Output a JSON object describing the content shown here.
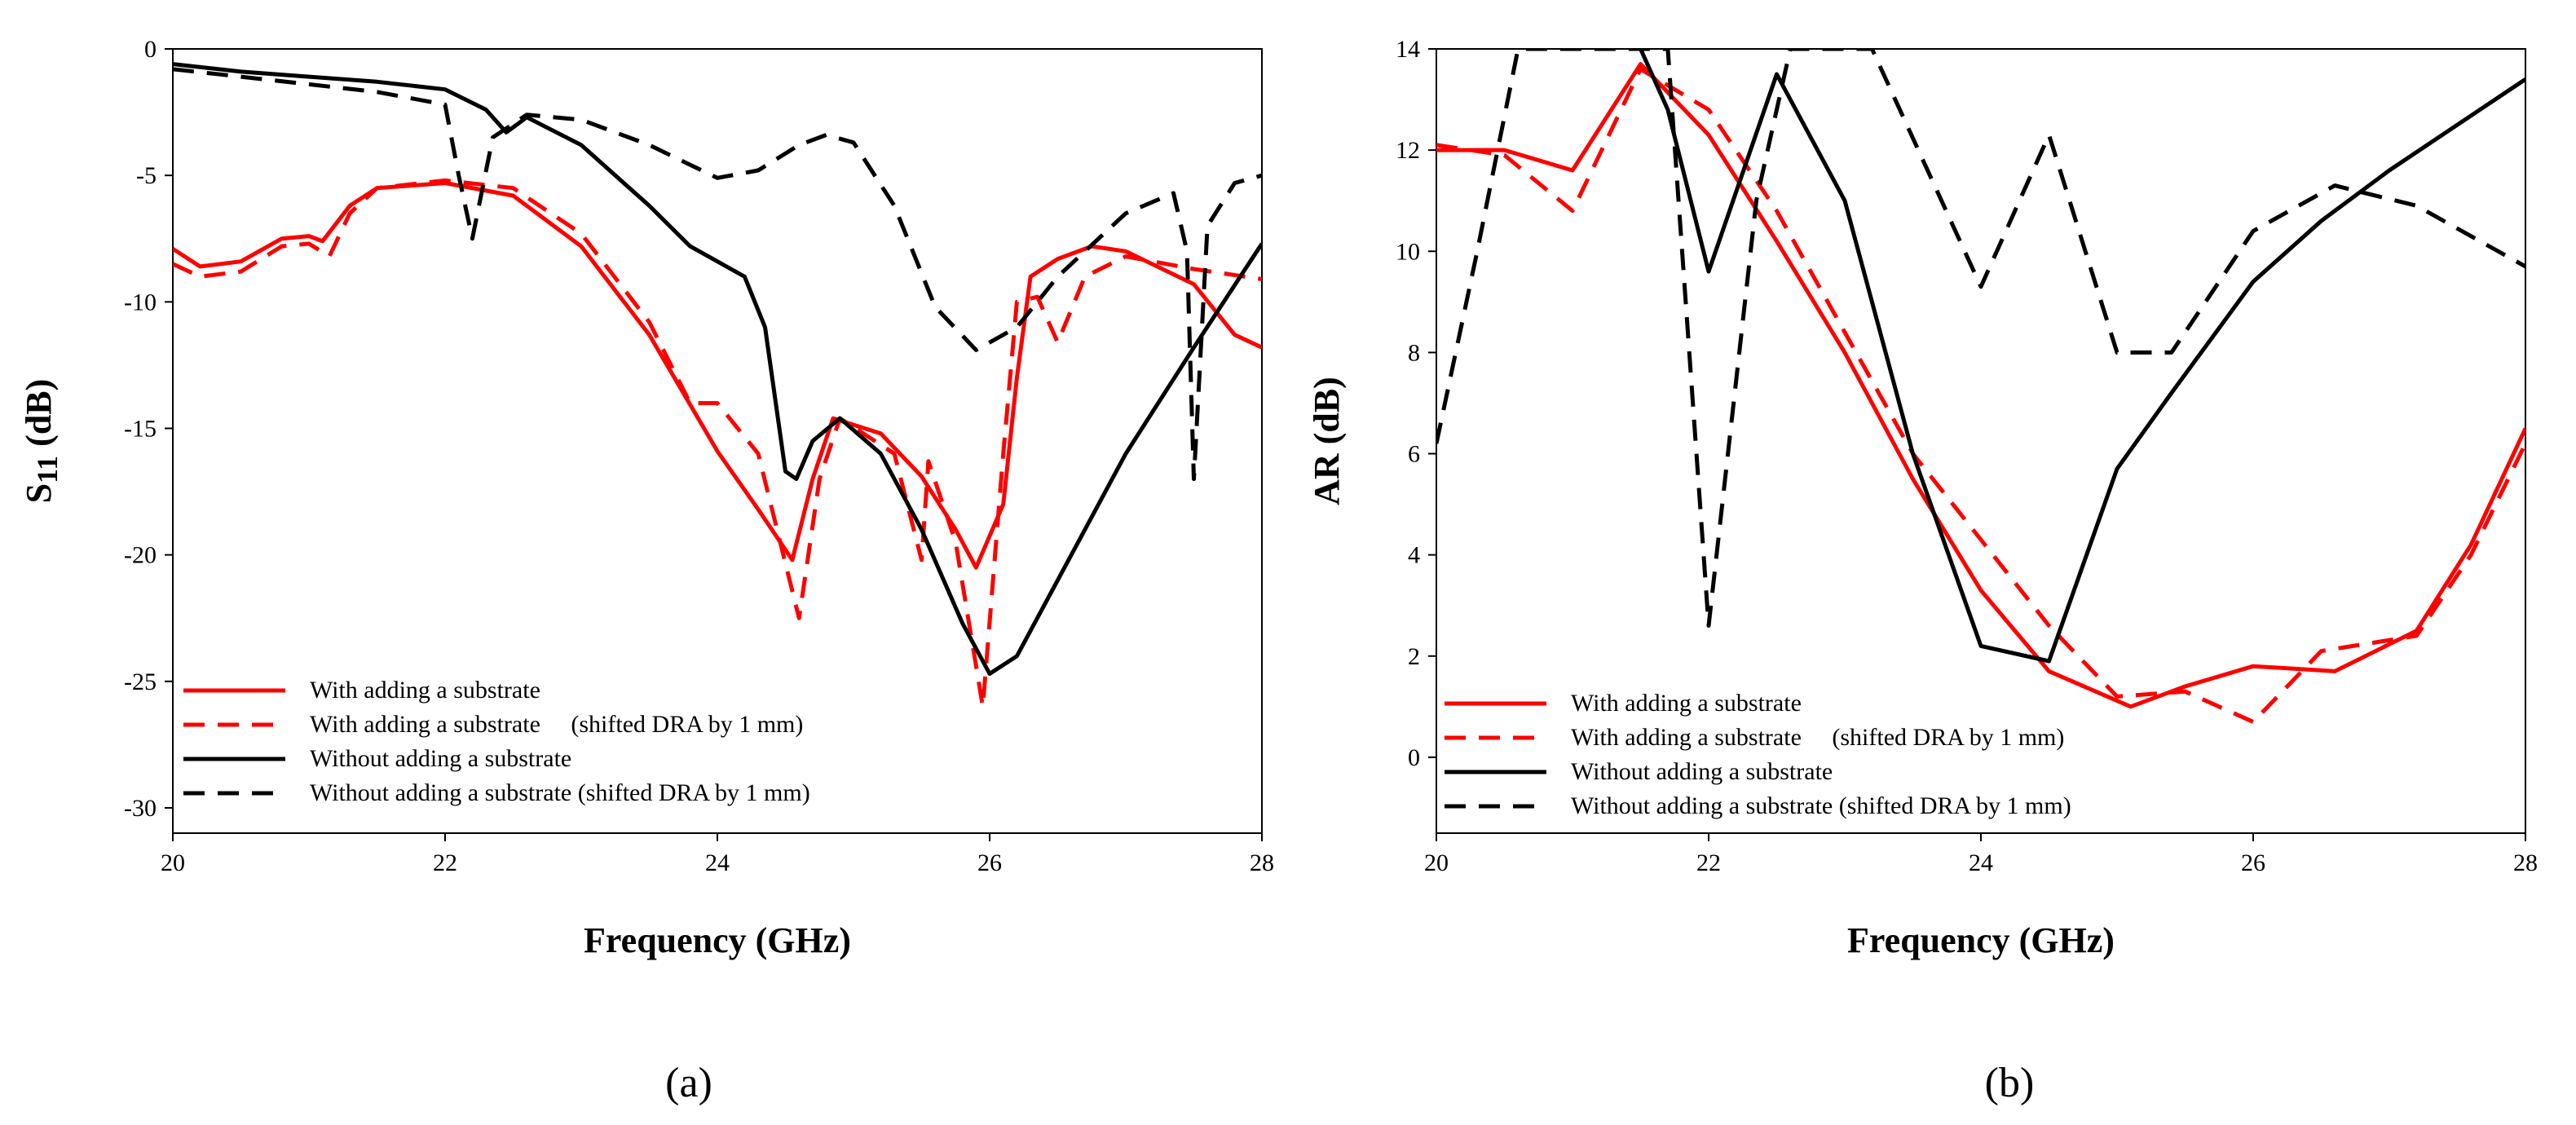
{
  "chart_data": [
    {
      "type": "line",
      "panel": "a",
      "caption": "(a)",
      "xlabel": "Frequency (GHz)",
      "ylabel_main": "S",
      "ylabel_sub": "11",
      "ylabel_unit": " (dB)",
      "xlim": [
        20,
        28
      ],
      "ylim": [
        -31,
        0
      ],
      "xticks": [
        "20",
        "22",
        "24",
        "26",
        "28"
      ],
      "yticks": [
        "0",
        "-5",
        "-10",
        "-15",
        "-20",
        "-25",
        "-30"
      ],
      "legend_position": "bottom-left",
      "series": [
        {
          "name": "With adding a substrate",
          "color": "#ff0000",
          "dash": "solid",
          "points": [
            [
              20,
              -7.9
            ],
            [
              20.2,
              -8.6
            ],
            [
              20.5,
              -8.4
            ],
            [
              20.8,
              -7.5
            ],
            [
              21.0,
              -7.4
            ],
            [
              21.1,
              -7.6
            ],
            [
              21.3,
              -6.2
            ],
            [
              21.5,
              -5.5
            ],
            [
              22.0,
              -5.3
            ],
            [
              22.5,
              -5.8
            ],
            [
              23.0,
              -7.8
            ],
            [
              23.5,
              -11.3
            ],
            [
              24.0,
              -15.9
            ],
            [
              24.3,
              -18.2
            ],
            [
              24.55,
              -20.2
            ],
            [
              24.7,
              -17.0
            ],
            [
              24.85,
              -14.6
            ],
            [
              25.2,
              -15.2
            ],
            [
              25.5,
              -16.9
            ],
            [
              25.75,
              -19.0
            ],
            [
              25.9,
              -20.5
            ],
            [
              26.1,
              -18.0
            ],
            [
              26.2,
              -13.0
            ],
            [
              26.3,
              -9.0
            ],
            [
              26.5,
              -8.3
            ],
            [
              26.75,
              -7.8
            ],
            [
              27.0,
              -8.0
            ],
            [
              27.5,
              -9.3
            ],
            [
              27.8,
              -11.3
            ],
            [
              28.0,
              -11.8
            ]
          ]
        },
        {
          "name": "With adding a substrate     (shifted DRA by 1 mm)",
          "color": "#ff0000",
          "dash": "dashed",
          "points": [
            [
              20,
              -8.5
            ],
            [
              20.2,
              -9.0
            ],
            [
              20.5,
              -8.8
            ],
            [
              20.8,
              -7.8
            ],
            [
              21.0,
              -7.7
            ],
            [
              21.15,
              -8.2
            ],
            [
              21.3,
              -6.5
            ],
            [
              21.5,
              -5.5
            ],
            [
              22.0,
              -5.2
            ],
            [
              22.5,
              -5.5
            ],
            [
              23.0,
              -7.3
            ],
            [
              23.5,
              -10.8
            ],
            [
              23.8,
              -14.0
            ],
            [
              24.0,
              -14.0
            ],
            [
              24.3,
              -16.0
            ],
            [
              24.6,
              -22.5
            ],
            [
              24.75,
              -17.0
            ],
            [
              24.9,
              -14.6
            ],
            [
              25.3,
              -16.0
            ],
            [
              25.5,
              -20.2
            ],
            [
              25.55,
              -16.3
            ],
            [
              25.75,
              -19.5
            ],
            [
              25.95,
              -26.0
            ],
            [
              26.1,
              -16.0
            ],
            [
              26.2,
              -10.0
            ],
            [
              26.35,
              -9.8
            ],
            [
              26.5,
              -11.6
            ],
            [
              26.7,
              -9.0
            ],
            [
              27.0,
              -8.2
            ],
            [
              27.5,
              -8.7
            ],
            [
              28.0,
              -9.1
            ]
          ]
        },
        {
          "name": "Without adding a substrate",
          "color": "#000000",
          "dash": "solid",
          "points": [
            [
              20,
              -0.6
            ],
            [
              20.5,
              -0.9
            ],
            [
              21.0,
              -1.1
            ],
            [
              21.5,
              -1.3
            ],
            [
              22.0,
              -1.6
            ],
            [
              22.3,
              -2.4
            ],
            [
              22.45,
              -3.3
            ],
            [
              22.6,
              -2.7
            ],
            [
              23.0,
              -3.8
            ],
            [
              23.5,
              -6.2
            ],
            [
              23.8,
              -7.8
            ],
            [
              24.2,
              -9.0
            ],
            [
              24.35,
              -11.0
            ],
            [
              24.5,
              -16.7
            ],
            [
              24.58,
              -17.0
            ],
            [
              24.7,
              -15.5
            ],
            [
              24.9,
              -14.6
            ],
            [
              25.2,
              -16.0
            ],
            [
              25.5,
              -19.0
            ],
            [
              25.8,
              -22.7
            ],
            [
              26.0,
              -24.7
            ],
            [
              26.2,
              -24.0
            ],
            [
              26.5,
              -21.0
            ],
            [
              27.0,
              -16.0
            ],
            [
              27.5,
              -11.8
            ],
            [
              28.0,
              -7.7
            ]
          ]
        },
        {
          "name": "Without adding a substrate (shifted DRA by 1 mm)",
          "color": "#000000",
          "dash": "dashed",
          "points": [
            [
              20,
              -0.8
            ],
            [
              20.5,
              -1.1
            ],
            [
              21.0,
              -1.4
            ],
            [
              21.5,
              -1.7
            ],
            [
              22.0,
              -2.2
            ],
            [
              22.1,
              -5.0
            ],
            [
              22.2,
              -7.5
            ],
            [
              22.35,
              -3.5
            ],
            [
              22.6,
              -2.6
            ],
            [
              23.0,
              -2.8
            ],
            [
              23.5,
              -3.8
            ],
            [
              24.0,
              -5.1
            ],
            [
              24.3,
              -4.8
            ],
            [
              24.6,
              -3.8
            ],
            [
              24.8,
              -3.4
            ],
            [
              25.0,
              -3.7
            ],
            [
              25.3,
              -6.2
            ],
            [
              25.6,
              -10.2
            ],
            [
              25.9,
              -11.9
            ],
            [
              26.2,
              -11.0
            ],
            [
              26.5,
              -9.0
            ],
            [
              27.0,
              -6.5
            ],
            [
              27.35,
              -5.7
            ],
            [
              27.45,
              -8.0
            ],
            [
              27.5,
              -17.0
            ],
            [
              27.6,
              -7.0
            ],
            [
              27.8,
              -5.3
            ],
            [
              28.0,
              -5.0
            ]
          ]
        }
      ]
    },
    {
      "type": "line",
      "panel": "b",
      "caption": "(b)",
      "xlabel": "Frequency (GHz)",
      "ylabel_main": "AR (dB)",
      "xlim": [
        20,
        28
      ],
      "ylim": [
        -1.5,
        14
      ],
      "xticks": [
        "20",
        "22",
        "24",
        "26",
        "28"
      ],
      "yticks": [
        "0",
        "2",
        "4",
        "6",
        "8",
        "10",
        "12",
        "14"
      ],
      "legend_position": "bottom-left",
      "series": [
        {
          "name": "With adding a substrate",
          "color": "#ff0000",
          "dash": "solid",
          "points": [
            [
              20,
              12.0
            ],
            [
              20.5,
              12.0
            ],
            [
              21.0,
              11.6
            ],
            [
              21.5,
              13.7
            ],
            [
              22.0,
              12.3
            ],
            [
              22.5,
              10.2
            ],
            [
              23.0,
              8.0
            ],
            [
              23.5,
              5.5
            ],
            [
              24.0,
              3.3
            ],
            [
              24.5,
              1.7
            ],
            [
              25.1,
              1.0
            ],
            [
              25.5,
              1.4
            ],
            [
              26.0,
              1.8
            ],
            [
              26.6,
              1.7
            ],
            [
              27.2,
              2.5
            ],
            [
              27.6,
              4.2
            ],
            [
              28.0,
              6.5
            ]
          ]
        },
        {
          "name": "With adding a substrate     (shifted DRA by 1 mm)",
          "color": "#ff0000",
          "dash": "dashed",
          "points": [
            [
              20,
              12.1
            ],
            [
              20.5,
              11.9
            ],
            [
              21.0,
              10.8
            ],
            [
              21.5,
              13.6
            ],
            [
              22.0,
              12.8
            ],
            [
              22.5,
              10.8
            ],
            [
              23.0,
              8.4
            ],
            [
              23.5,
              6.0
            ],
            [
              24.0,
              4.3
            ],
            [
              24.5,
              2.6
            ],
            [
              25.0,
              1.2
            ],
            [
              25.5,
              1.3
            ],
            [
              26.0,
              0.7
            ],
            [
              26.5,
              2.1
            ],
            [
              27.2,
              2.4
            ],
            [
              27.6,
              4.0
            ],
            [
              28.0,
              6.2
            ]
          ]
        },
        {
          "name": "Without adding a substrate",
          "color": "#000000",
          "dash": "solid",
          "points": [
            [
              21.5,
              14.0
            ],
            [
              21.7,
              12.8
            ],
            [
              22.0,
              9.6
            ],
            [
              22.5,
              13.5
            ],
            [
              23.0,
              11.0
            ],
            [
              23.5,
              6.0
            ],
            [
              24.0,
              2.2
            ],
            [
              24.5,
              1.9
            ],
            [
              25.0,
              5.7
            ],
            [
              25.4,
              7.2
            ],
            [
              26.0,
              9.4
            ],
            [
              26.5,
              10.6
            ],
            [
              27.0,
              11.6
            ],
            [
              27.5,
              12.5
            ],
            [
              28.0,
              13.4
            ]
          ]
        },
        {
          "name": "Without adding a substrate (shifted DRA by 1 mm)",
          "color": "#000000",
          "dash": "dashed",
          "points": [
            [
              20,
              6.2
            ],
            [
              20.3,
              10.0
            ],
            [
              20.6,
              14.0
            ],
            [
              21.7,
              14.0
            ],
            [
              22.0,
              2.6
            ],
            [
              22.35,
              11.0
            ],
            [
              22.6,
              14.0
            ],
            [
              23.2,
              14.0
            ],
            [
              24.0,
              9.3
            ],
            [
              24.5,
              12.3
            ],
            [
              25.0,
              8.0
            ],
            [
              25.4,
              8.0
            ],
            [
              26.0,
              10.4
            ],
            [
              26.6,
              11.3
            ],
            [
              27.2,
              10.9
            ],
            [
              28.0,
              9.7
            ]
          ]
        }
      ]
    }
  ]
}
